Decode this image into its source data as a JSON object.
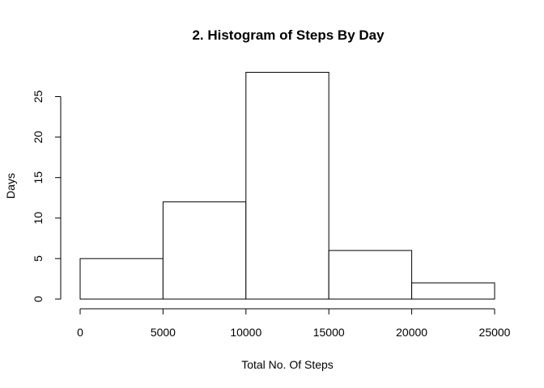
{
  "chart_data": {
    "type": "bar",
    "title": "2. Histogram of Steps By Day",
    "xlabel": "Total No. Of Steps",
    "ylabel": "Days",
    "bins": [
      {
        "from": 0,
        "to": 5000,
        "count": 5
      },
      {
        "from": 5000,
        "to": 10000,
        "count": 12
      },
      {
        "from": 10000,
        "to": 15000,
        "count": 28
      },
      {
        "from": 15000,
        "to": 20000,
        "count": 6
      },
      {
        "from": 20000,
        "to": 25000,
        "count": 2
      }
    ],
    "xlim": [
      0,
      25000
    ],
    "ylim": [
      0,
      28
    ],
    "xticks": [
      0,
      5000,
      10000,
      15000,
      20000,
      25000
    ],
    "yticks": [
      0,
      5,
      10,
      15,
      20,
      25
    ],
    "grid": false,
    "legend": "none",
    "bar_fill": "#ffffff",
    "bar_stroke": "#000000"
  }
}
